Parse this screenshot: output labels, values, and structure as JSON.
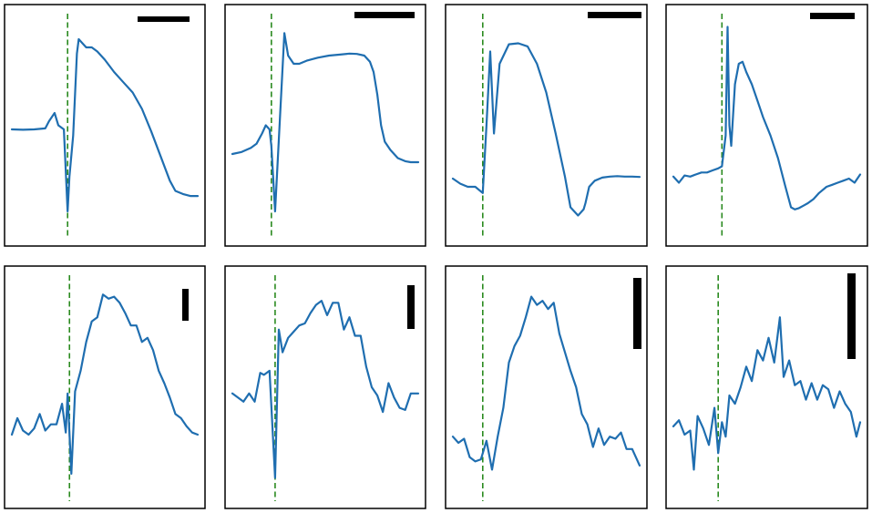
{
  "colors": {
    "trace": "#1f6eb0",
    "stimulus_line": "#2a8a1f",
    "scale_bar": "#000000",
    "frame": "#000000",
    "background": "#ffffff"
  },
  "chart_data": [
    {
      "type": "line",
      "panel": "row1-col1",
      "ylim": [
        0,
        1
      ],
      "stimulus_x": 0.3,
      "scale_bar": {
        "orientation": "horizontal"
      },
      "grid": false,
      "x": [
        0.0,
        0.06,
        0.12,
        0.18,
        0.2,
        0.23,
        0.25,
        0.28,
        0.3,
        0.31,
        0.33,
        0.35,
        0.36,
        0.38,
        0.4,
        0.43,
        0.46,
        0.5,
        0.55,
        0.6,
        0.65,
        0.7,
        0.75,
        0.8,
        0.85,
        0.88,
        0.92,
        0.96,
        1.0
      ],
      "values": [
        0.48,
        0.478,
        0.48,
        0.485,
        0.52,
        0.56,
        0.5,
        0.48,
        0.08,
        0.25,
        0.45,
        0.85,
        0.92,
        0.9,
        0.88,
        0.88,
        0.86,
        0.82,
        0.76,
        0.71,
        0.66,
        0.58,
        0.47,
        0.35,
        0.23,
        0.18,
        0.165,
        0.155,
        0.155
      ]
    },
    {
      "type": "line",
      "panel": "row1-col2",
      "ylim": [
        0,
        1
      ],
      "stimulus_x": 0.21,
      "scale_bar": {
        "orientation": "horizontal"
      },
      "grid": false,
      "x": [
        0.0,
        0.05,
        0.1,
        0.13,
        0.16,
        0.18,
        0.2,
        0.21,
        0.23,
        0.26,
        0.28,
        0.3,
        0.33,
        0.36,
        0.4,
        0.46,
        0.52,
        0.58,
        0.63,
        0.67,
        0.71,
        0.74,
        0.76,
        0.78,
        0.8,
        0.82,
        0.85,
        0.89,
        0.93,
        0.96,
        1.0
      ],
      "values": [
        0.36,
        0.37,
        0.39,
        0.41,
        0.46,
        0.5,
        0.48,
        0.4,
        0.08,
        0.6,
        0.95,
        0.84,
        0.8,
        0.8,
        0.815,
        0.83,
        0.84,
        0.845,
        0.85,
        0.848,
        0.84,
        0.81,
        0.76,
        0.65,
        0.5,
        0.42,
        0.38,
        0.34,
        0.325,
        0.32,
        0.32
      ]
    },
    {
      "type": "line",
      "panel": "row1-col3",
      "ylim": [
        0,
        1
      ],
      "stimulus_x": 0.16,
      "scale_bar": {
        "orientation": "horizontal"
      },
      "grid": false,
      "x": [
        0.0,
        0.04,
        0.08,
        0.12,
        0.16,
        0.18,
        0.2,
        0.22,
        0.25,
        0.3,
        0.35,
        0.4,
        0.45,
        0.5,
        0.55,
        0.6,
        0.63,
        0.67,
        0.7,
        0.71,
        0.73,
        0.76,
        0.8,
        0.84,
        0.88,
        0.92,
        0.96,
        1.0
      ],
      "values": [
        0.24,
        0.215,
        0.2,
        0.2,
        0.17,
        0.5,
        0.86,
        0.46,
        0.8,
        0.895,
        0.9,
        0.885,
        0.8,
        0.66,
        0.46,
        0.25,
        0.1,
        0.06,
        0.09,
        0.12,
        0.2,
        0.23,
        0.245,
        0.25,
        0.252,
        0.25,
        0.25,
        0.248
      ]
    },
    {
      "type": "line",
      "panel": "row1-col4",
      "ylim": [
        0,
        1
      ],
      "stimulus_x": 0.26,
      "scale_bar": {
        "orientation": "horizontal"
      },
      "grid": false,
      "x": [
        0.0,
        0.03,
        0.06,
        0.09,
        0.12,
        0.15,
        0.18,
        0.21,
        0.24,
        0.26,
        0.28,
        0.29,
        0.3,
        0.31,
        0.33,
        0.35,
        0.37,
        0.39,
        0.42,
        0.45,
        0.48,
        0.52,
        0.56,
        0.6,
        0.63,
        0.65,
        0.67,
        0.7,
        0.72,
        0.75,
        0.78,
        0.82,
        0.85,
        0.88,
        0.91,
        0.94,
        0.97,
        1.0
      ],
      "values": [
        0.25,
        0.22,
        0.255,
        0.25,
        0.26,
        0.27,
        0.27,
        0.28,
        0.29,
        0.3,
        0.45,
        0.98,
        0.5,
        0.4,
        0.7,
        0.8,
        0.81,
        0.76,
        0.7,
        0.62,
        0.54,
        0.45,
        0.34,
        0.2,
        0.1,
        0.09,
        0.095,
        0.11,
        0.12,
        0.14,
        0.17,
        0.2,
        0.21,
        0.22,
        0.23,
        0.24,
        0.22,
        0.26
      ]
    },
    {
      "type": "line",
      "panel": "row2-col1",
      "ylim": [
        0,
        1
      ],
      "stimulus_x": 0.31,
      "scale_bar": {
        "orientation": "vertical"
      },
      "grid": false,
      "x": [
        0.0,
        0.03,
        0.06,
        0.09,
        0.12,
        0.15,
        0.18,
        0.21,
        0.24,
        0.27,
        0.29,
        0.3,
        0.32,
        0.34,
        0.37,
        0.4,
        0.43,
        0.46,
        0.49,
        0.52,
        0.55,
        0.58,
        0.61,
        0.64,
        0.67,
        0.7,
        0.73,
        0.76,
        0.79,
        0.82,
        0.85,
        0.88,
        0.91,
        0.94,
        0.97,
        1.0
      ],
      "values": [
        0.27,
        0.35,
        0.29,
        0.27,
        0.3,
        0.37,
        0.29,
        0.32,
        0.32,
        0.42,
        0.28,
        0.47,
        0.08,
        0.48,
        0.58,
        0.72,
        0.82,
        0.84,
        0.95,
        0.93,
        0.94,
        0.91,
        0.86,
        0.8,
        0.8,
        0.72,
        0.74,
        0.68,
        0.58,
        0.52,
        0.45,
        0.37,
        0.35,
        0.31,
        0.28,
        0.27
      ]
    },
    {
      "type": "line",
      "panel": "row2-col2",
      "ylim": [
        0,
        1
      ],
      "stimulus_x": 0.23,
      "scale_bar": {
        "orientation": "vertical"
      },
      "grid": false,
      "x": [
        0.0,
        0.03,
        0.06,
        0.09,
        0.12,
        0.15,
        0.17,
        0.2,
        0.23,
        0.25,
        0.27,
        0.3,
        0.33,
        0.36,
        0.39,
        0.42,
        0.45,
        0.48,
        0.51,
        0.54,
        0.57,
        0.6,
        0.63,
        0.66,
        0.69,
        0.72,
        0.75,
        0.78,
        0.81,
        0.84,
        0.87,
        0.9,
        0.93,
        0.96,
        1.0
      ],
      "values": [
        0.47,
        0.45,
        0.43,
        0.47,
        0.43,
        0.57,
        0.56,
        0.58,
        0.06,
        0.78,
        0.67,
        0.74,
        0.77,
        0.8,
        0.81,
        0.86,
        0.9,
        0.92,
        0.85,
        0.91,
        0.91,
        0.78,
        0.84,
        0.75,
        0.75,
        0.6,
        0.5,
        0.46,
        0.38,
        0.52,
        0.45,
        0.4,
        0.39,
        0.47,
        0.47
      ]
    },
    {
      "type": "line",
      "panel": "row2-col3",
      "ylim": [
        0,
        1
      ],
      "stimulus_x": 0.16,
      "scale_bar": {
        "orientation": "vertical"
      },
      "grid": false,
      "x": [
        0.0,
        0.03,
        0.06,
        0.09,
        0.12,
        0.15,
        0.18,
        0.21,
        0.24,
        0.27,
        0.3,
        0.33,
        0.36,
        0.39,
        0.42,
        0.45,
        0.48,
        0.51,
        0.54,
        0.57,
        0.6,
        0.63,
        0.66,
        0.69,
        0.72,
        0.75,
        0.78,
        0.81,
        0.84,
        0.87,
        0.9,
        0.93,
        0.96,
        1.0
      ],
      "values": [
        0.26,
        0.23,
        0.25,
        0.16,
        0.14,
        0.15,
        0.24,
        0.1,
        0.26,
        0.4,
        0.62,
        0.7,
        0.75,
        0.84,
        0.94,
        0.9,
        0.92,
        0.88,
        0.91,
        0.76,
        0.67,
        0.58,
        0.5,
        0.37,
        0.32,
        0.21,
        0.3,
        0.22,
        0.26,
        0.25,
        0.28,
        0.2,
        0.2,
        0.12
      ]
    },
    {
      "type": "line",
      "panel": "row2-col4",
      "ylim": [
        0,
        1
      ],
      "stimulus_x": 0.24,
      "scale_bar": {
        "orientation": "vertical"
      },
      "grid": false,
      "x": [
        0.0,
        0.03,
        0.06,
        0.09,
        0.11,
        0.13,
        0.16,
        0.19,
        0.22,
        0.24,
        0.26,
        0.28,
        0.3,
        0.33,
        0.36,
        0.39,
        0.42,
        0.45,
        0.48,
        0.51,
        0.54,
        0.57,
        0.59,
        0.62,
        0.65,
        0.68,
        0.71,
        0.74,
        0.77,
        0.8,
        0.83,
        0.86,
        0.89,
        0.92,
        0.95,
        0.98,
        1.0
      ],
      "values": [
        0.31,
        0.34,
        0.27,
        0.29,
        0.1,
        0.36,
        0.3,
        0.22,
        0.4,
        0.18,
        0.33,
        0.26,
        0.46,
        0.42,
        0.5,
        0.6,
        0.53,
        0.68,
        0.63,
        0.74,
        0.62,
        0.84,
        0.55,
        0.63,
        0.51,
        0.53,
        0.44,
        0.52,
        0.44,
        0.51,
        0.49,
        0.4,
        0.48,
        0.42,
        0.38,
        0.26,
        0.33
      ]
    }
  ]
}
